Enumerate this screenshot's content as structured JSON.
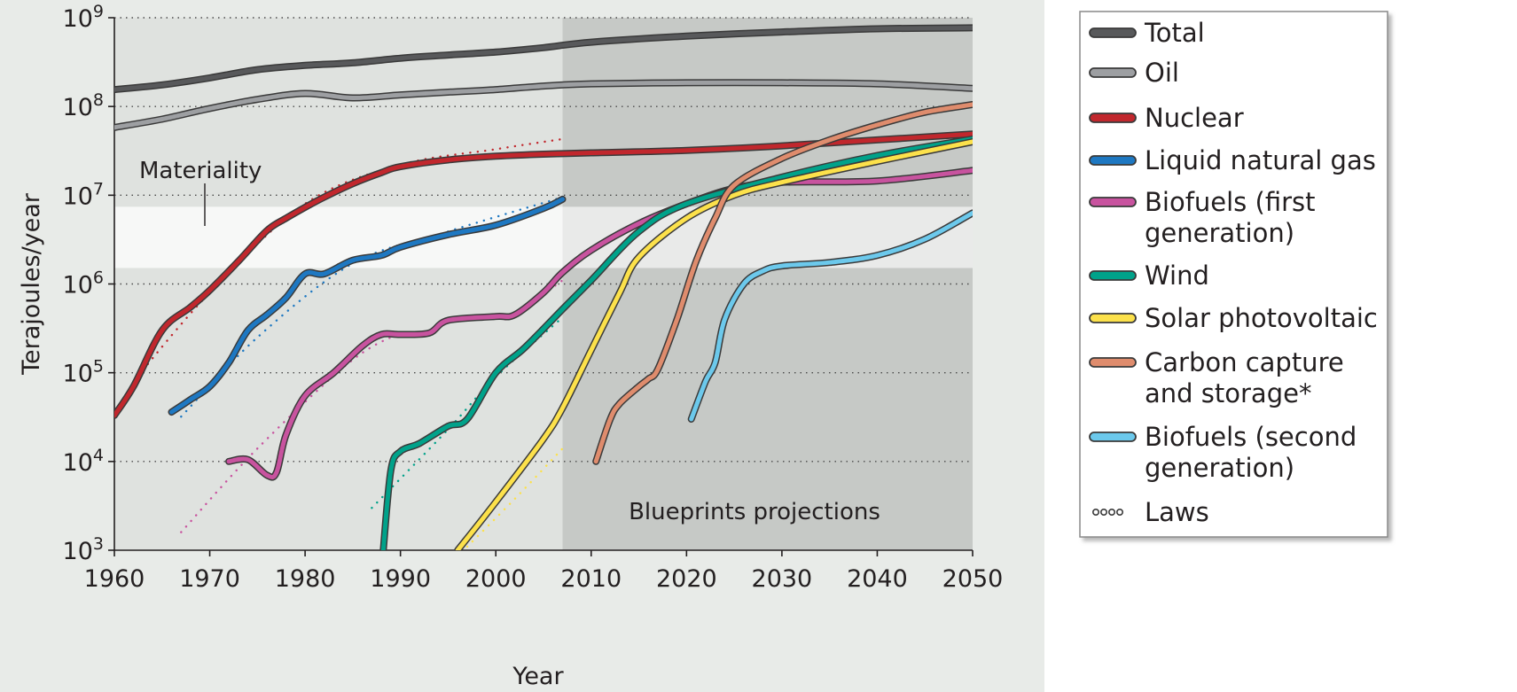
{
  "chart_data": {
    "type": "line",
    "xlabel": "Year",
    "ylabel": "Terajoules/year",
    "xlim": [
      1960,
      2050
    ],
    "ylim_log10": [
      3,
      9
    ],
    "yscale": "log",
    "grid": "horizontal dotted",
    "x_ticks": [
      "1960",
      "1970",
      "1980",
      "1990",
      "2000",
      "2010",
      "2020",
      "2030",
      "2040",
      "2050"
    ],
    "y_ticks": [
      {
        "base": "10",
        "exp": "3"
      },
      {
        "base": "10",
        "exp": "4"
      },
      {
        "base": "10",
        "exp": "5"
      },
      {
        "base": "10",
        "exp": "6"
      },
      {
        "base": "10",
        "exp": "7"
      },
      {
        "base": "10",
        "exp": "8"
      },
      {
        "base": "10",
        "exp": "9"
      }
    ],
    "bands": {
      "materiality_log10": [
        6.18,
        6.87
      ],
      "projection_start_year": 2007,
      "projection_end_year": 2050
    },
    "annotations": {
      "materiality": "Materiality",
      "projections": "Blueprints projections"
    },
    "legend_position": "right",
    "series": [
      {
        "name": "Total",
        "color": "#58595b",
        "style": "solid",
        "x": [
          1960,
          1965,
          1970,
          1975,
          1980,
          1985,
          1990,
          1995,
          2000,
          2005,
          2010,
          2020,
          2030,
          2040,
          2050
        ],
        "y": [
          155000000.0,
          175000000.0,
          210000000.0,
          260000000.0,
          290000000.0,
          310000000.0,
          350000000.0,
          380000000.0,
          410000000.0,
          460000000.0,
          530000000.0,
          620000000.0,
          690000000.0,
          750000000.0,
          770000000.0
        ]
      },
      {
        "name": "Oil",
        "color": "#9d9fa2",
        "style": "solid",
        "x": [
          1960,
          1965,
          1970,
          1975,
          1980,
          1985,
          1990,
          1995,
          2000,
          2005,
          2010,
          2020,
          2030,
          2040,
          2050
        ],
        "y": [
          58000000.0,
          72000000.0,
          95000000.0,
          120000000.0,
          140000000.0,
          125000000.0,
          135000000.0,
          145000000.0,
          155000000.0,
          170000000.0,
          180000000.0,
          185000000.0,
          185000000.0,
          180000000.0,
          160000000.0
        ]
      },
      {
        "name": "Nuclear",
        "color": "#c1272d",
        "style": "solid",
        "x": [
          1960,
          1962,
          1965,
          1968,
          1970,
          1973,
          1976,
          1978,
          1980,
          1982,
          1985,
          1988,
          1990,
          1995,
          2000,
          2005,
          2010,
          2020,
          2030,
          2040,
          2050
        ],
        "y": [
          33000.0,
          70000.0,
          300000.0,
          550000.0,
          850000.0,
          1800000.0,
          4000000.0,
          5500000.0,
          7300000.0,
          9500000.0,
          13500000.0,
          18000000.0,
          21000000.0,
          25000000.0,
          27500000.0,
          29000000.0,
          30000000.0,
          32000000.0,
          36000000.0,
          42000000.0,
          49000000.0
        ]
      },
      {
        "name": "Nuclear law",
        "color": "#c1272d",
        "style": "law",
        "x": [
          1962,
          1970,
          1980,
          1990,
          2000,
          2007
        ],
        "y": [
          80000.0,
          800000.0,
          8000000.0,
          22000000.0,
          33000000.0,
          43000000.0
        ]
      },
      {
        "name": "Liquid natural gas",
        "color": "#1e78c2",
        "style": "solid",
        "x": [
          1966,
          1968,
          1970,
          1972,
          1974,
          1976,
          1978,
          1980,
          1982,
          1985,
          1988,
          1990,
          1995,
          2000,
          2005,
          2007
        ],
        "y": [
          36000.0,
          50000.0,
          70000.0,
          130000.0,
          300000.0,
          450000.0,
          700000.0,
          1300000.0,
          1300000.0,
          1850000.0,
          2100000.0,
          2600000.0,
          3600000.0,
          4600000.0,
          7100000.0,
          9000000.0
        ]
      },
      {
        "name": "Liquid natural gas law",
        "color": "#1e78c2",
        "style": "law",
        "x": [
          1967,
          1975,
          1985,
          1995,
          2007
        ],
        "y": [
          32000.0,
          250000.0,
          1700000.0,
          3900000.0,
          9500000.0
        ]
      },
      {
        "name": "Biofuels (first generation)",
        "color": "#c8539f",
        "style": "solid",
        "x": [
          1972,
          1974,
          1976,
          1977,
          1978,
          1980,
          1983,
          1986,
          1988,
          1990,
          1993,
          1995,
          2000,
          2002,
          2005,
          2007,
          2010,
          2015,
          2020,
          2025,
          2030,
          2040,
          2050
        ],
        "y": [
          10000.0,
          10500.0,
          7000.0,
          7500.0,
          20000.0,
          55000.0,
          100000.0,
          200000.0,
          270000.0,
          270000.0,
          280000.0,
          390000.0,
          430000.0,
          450000.0,
          800000.0,
          1350000.0,
          2400000.0,
          4800000.0,
          8000000.0,
          12000000.0,
          14000000.0,
          14500000.0,
          19000000.0
        ]
      },
      {
        "name": "Biofuels (first generation) law",
        "color": "#c8539f",
        "style": "law",
        "x": [
          1967,
          1975,
          1985,
          1991
        ],
        "y": [
          1600.0,
          14000.0,
          140000.0,
          310000.0
        ]
      },
      {
        "name": "Biofuels (first generation) law",
        "color": "#c8539f",
        "style": "law",
        "x": [
          2001,
          2004,
          2007
        ],
        "y": [
          400000.0,
          650000.0,
          1100000.0
        ]
      },
      {
        "name": "Wind",
        "color": "#00a28a",
        "style": "solid",
        "x": [
          1988.2,
          1989,
          1990,
          1992,
          1995,
          1997,
          2000,
          2003,
          2007,
          2010,
          2015,
          2020,
          2030,
          2040,
          2050
        ],
        "y": [
          1000.0,
          8000.0,
          13000.0,
          16000.0,
          25000.0,
          30000.0,
          100000.0,
          190000.0,
          520000.0,
          1100000.0,
          3900000.0,
          8000000.0,
          16000000.0,
          28000000.0,
          43000000.0
        ]
      },
      {
        "name": "Wind law",
        "color": "#00a28a",
        "style": "law",
        "x": [
          1987,
          1995,
          2000,
          2007
        ],
        "y": [
          3000.0,
          23000.0,
          90000.0,
          420000.0
        ]
      },
      {
        "name": "Solar photovoltaic",
        "color": "#fce14b",
        "style": "solid",
        "x": [
          1996,
          2000,
          2005,
          2007,
          2010,
          2013,
          2015,
          2020,
          2025,
          2030,
          2040,
          2050
        ],
        "y": [
          1000.0,
          3500.0,
          18000.0,
          40000.0,
          180000.0,
          800000.0,
          2000000.0,
          5500000.0,
          10000000.0,
          14000000.0,
          24000000.0,
          40000000.0
        ]
      },
      {
        "name": "Solar photovoltaic law",
        "color": "#fce14b",
        "style": "law",
        "x": [
          1997,
          2002,
          2007
        ],
        "y": [
          1100.0,
          3800.0,
          14000.0
        ]
      },
      {
        "name": "Carbon capture and storage*",
        "color": "#df8c6d",
        "style": "solid",
        "x": [
          2010.5,
          2012,
          2013,
          2015,
          2016,
          2017,
          2019,
          2021,
          2023,
          2025,
          2030,
          2035,
          2040,
          2045,
          2050
        ],
        "y": [
          10000.0,
          30000.0,
          45000.0,
          70000.0,
          85000.0,
          110000.0,
          400000.0,
          1800000.0,
          5500000.0,
          13000000.0,
          26000000.0,
          42000000.0,
          62000000.0,
          86000000.0,
          105000000.0
        ]
      },
      {
        "name": "Biofuels (second generation)",
        "color": "#6cc9ec",
        "style": "solid",
        "x": [
          2020.5,
          2022,
          2023,
          2024,
          2026,
          2028,
          2030,
          2035,
          2040,
          2045,
          2050
        ],
        "y": [
          30000.0,
          80000.0,
          130000.0,
          400000.0,
          1000000.0,
          1400000.0,
          1600000.0,
          1750000.0,
          2100000.0,
          3200000.0,
          6300000.0
        ]
      }
    ],
    "legend": [
      {
        "label": "Total",
        "color": "#58595b",
        "style": "solid"
      },
      {
        "label": "Oil",
        "color": "#9d9fa2",
        "style": "solid"
      },
      {
        "label": "Nuclear",
        "color": "#c1272d",
        "style": "solid"
      },
      {
        "label": "Liquid natural gas",
        "color": "#1e78c2",
        "style": "solid"
      },
      {
        "label": "Biofuels (first",
        "label2": "generation)",
        "color": "#c8539f",
        "style": "solid"
      },
      {
        "label": "Wind",
        "color": "#00a28a",
        "style": "solid"
      },
      {
        "label": "Solar photovoltaic",
        "color": "#fce14b",
        "style": "solid"
      },
      {
        "label": "Carbon capture",
        "label2": "and storage*",
        "color": "#df8c6d",
        "style": "solid"
      },
      {
        "label": "Biofuels (second",
        "label2": "generation)",
        "color": "#6cc9ec",
        "style": "solid"
      },
      {
        "label": "Laws",
        "color": "#ffffff",
        "style": "law"
      }
    ]
  }
}
